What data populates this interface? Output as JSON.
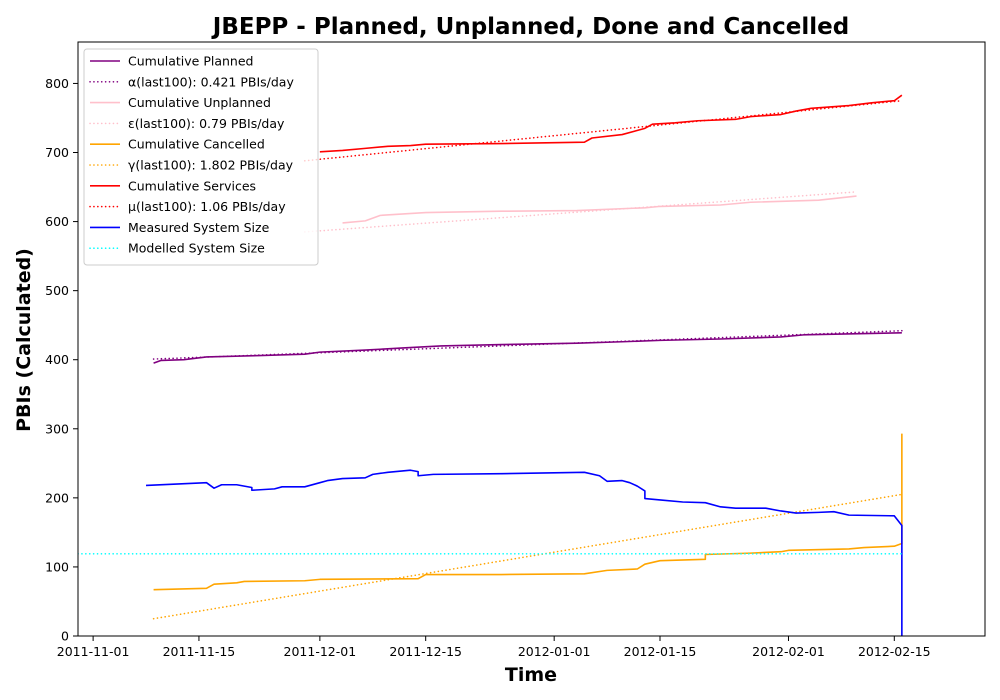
{
  "chart_data": {
    "type": "line",
    "title": "JBEPP - Planned, Unplanned, Done  and Cancelled",
    "xlabel": "Time",
    "ylabel": "PBIs (Calculated)",
    "xlim": [
      "2011-10-30",
      "2012-02-27"
    ],
    "ylim": [
      0,
      860
    ],
    "x_ticks": [
      "2011-11-01",
      "2011-11-15",
      "2011-12-01",
      "2011-12-15",
      "2012-01-01",
      "2012-01-15",
      "2012-02-01",
      "2012-02-15"
    ],
    "y_ticks": [
      0,
      100,
      200,
      300,
      400,
      500,
      600,
      700,
      800
    ],
    "grid": false,
    "legend_position": "top-left",
    "series": [
      {
        "name": "Cumulative Planned",
        "color": "#800080",
        "style": "solid",
        "points": [
          [
            "2011-11-09",
            395
          ],
          [
            "2011-11-10",
            399
          ],
          [
            "2011-11-13",
            400
          ],
          [
            "2011-11-16",
            404
          ],
          [
            "2011-11-23",
            406
          ],
          [
            "2011-11-29",
            408
          ],
          [
            "2011-12-01",
            411
          ],
          [
            "2011-12-07",
            414
          ],
          [
            "2011-12-12",
            417
          ],
          [
            "2011-12-17",
            420
          ],
          [
            "2011-12-25",
            422
          ],
          [
            "2012-01-04",
            424
          ],
          [
            "2012-01-10",
            426
          ],
          [
            "2012-01-15",
            428
          ],
          [
            "2012-01-23",
            430
          ],
          [
            "2012-01-31",
            433
          ],
          [
            "2012-02-03",
            436
          ],
          [
            "2012-02-16",
            439
          ]
        ]
      },
      {
        "name": "α(last100): 0.421 PBIs/day",
        "color": "#800080",
        "style": "dotted",
        "points": [
          [
            "2011-11-09",
            401
          ],
          [
            "2012-02-16",
            442
          ]
        ]
      },
      {
        "name": "Cumulative Unplanned",
        "color": "#ffc0cb",
        "style": "solid",
        "points": [
          [
            "2011-12-04",
            598
          ],
          [
            "2011-12-07",
            601
          ],
          [
            "2011-12-09",
            609
          ],
          [
            "2011-12-15",
            613
          ],
          [
            "2011-12-25",
            615
          ],
          [
            "2012-01-04",
            616
          ],
          [
            "2012-01-13",
            620
          ],
          [
            "2012-01-15",
            622
          ],
          [
            "2012-01-23",
            624
          ],
          [
            "2012-01-27",
            628
          ],
          [
            "2012-02-05",
            631
          ],
          [
            "2012-02-10",
            637
          ]
        ]
      },
      {
        "name": "ε(last100): 0.79 PBIs/day",
        "color": "#ffc0cb",
        "style": "dotted",
        "points": [
          [
            "2011-11-29",
            585
          ],
          [
            "2012-02-10",
            643
          ]
        ]
      },
      {
        "name": "Cumulative Cancelled",
        "color": "#ffa500",
        "style": "solid",
        "points": [
          [
            "2011-11-09",
            67
          ],
          [
            "2011-11-16",
            69
          ],
          [
            "2011-11-17",
            75
          ],
          [
            "2011-11-20",
            77
          ],
          [
            "2011-11-21",
            79
          ],
          [
            "2011-11-29",
            80
          ],
          [
            "2011-12-01",
            82
          ],
          [
            "2011-12-14",
            83
          ],
          [
            "2011-12-15",
            89
          ],
          [
            "2011-12-25",
            89
          ],
          [
            "2012-01-05",
            90
          ],
          [
            "2012-01-08",
            95
          ],
          [
            "2012-01-12",
            97
          ],
          [
            "2012-01-13",
            104
          ],
          [
            "2012-01-15",
            109
          ],
          [
            "2012-01-21",
            111
          ],
          [
            "2012-01-21",
            118
          ],
          [
            "2012-01-27",
            120
          ],
          [
            "2012-01-31",
            122
          ],
          [
            "2012-02-01",
            124
          ],
          [
            "2012-02-09",
            126
          ],
          [
            "2012-02-11",
            128
          ],
          [
            "2012-02-15",
            130
          ],
          [
            "2012-02-16",
            134
          ],
          [
            "2012-02-16",
            160
          ],
          [
            "2012-02-16",
            293
          ]
        ]
      },
      {
        "name": "γ(last100): 1.802 PBIs/day",
        "color": "#ffa500",
        "style": "dotted",
        "points": [
          [
            "2011-11-09",
            25
          ],
          [
            "2012-02-16",
            205
          ]
        ]
      },
      {
        "name": "Cumulative Services",
        "color": "#ff0000",
        "style": "solid",
        "points": [
          [
            "2011-12-01",
            701
          ],
          [
            "2011-12-04",
            703
          ],
          [
            "2011-12-07",
            706
          ],
          [
            "2011-12-10",
            709
          ],
          [
            "2011-12-13",
            710
          ],
          [
            "2011-12-15",
            712
          ],
          [
            "2011-12-25",
            713
          ],
          [
            "2012-01-05",
            715
          ],
          [
            "2012-01-06",
            721
          ],
          [
            "2012-01-10",
            726
          ],
          [
            "2012-01-13",
            735
          ],
          [
            "2012-01-14",
            741
          ],
          [
            "2012-01-17",
            743
          ],
          [
            "2012-01-20",
            746
          ],
          [
            "2012-01-25",
            748
          ],
          [
            "2012-01-27",
            752
          ],
          [
            "2012-01-31",
            755
          ],
          [
            "2012-02-02",
            760
          ],
          [
            "2012-02-04",
            764
          ],
          [
            "2012-02-09",
            768
          ],
          [
            "2012-02-12",
            772
          ],
          [
            "2012-02-15",
            775
          ],
          [
            "2012-02-16",
            783
          ]
        ]
      },
      {
        "name": "μ(last100): 1.06 PBIs/day",
        "color": "#ff0000",
        "style": "dotted",
        "points": [
          [
            "2011-11-29",
            688
          ],
          [
            "2012-02-16",
            775
          ]
        ]
      },
      {
        "name": "Measured System Size",
        "color": "#0000ff",
        "style": "solid",
        "points": [
          [
            "2011-11-08",
            218
          ],
          [
            "2011-11-12",
            220
          ],
          [
            "2011-11-16",
            222
          ],
          [
            "2011-11-17",
            214
          ],
          [
            "2011-11-18",
            219
          ],
          [
            "2011-11-20",
            219
          ],
          [
            "2011-11-22",
            215
          ],
          [
            "2011-11-22",
            211
          ],
          [
            "2011-11-25",
            213
          ],
          [
            "2011-11-26",
            216
          ],
          [
            "2011-11-29",
            216
          ],
          [
            "2011-12-01",
            222
          ],
          [
            "2011-12-02",
            225
          ],
          [
            "2011-12-04",
            228
          ],
          [
            "2011-12-07",
            229
          ],
          [
            "2011-12-08",
            234
          ],
          [
            "2011-12-10",
            237
          ],
          [
            "2011-12-13",
            240
          ],
          [
            "2011-12-14",
            238
          ],
          [
            "2011-12-14",
            232
          ],
          [
            "2011-12-16",
            234
          ],
          [
            "2011-12-25",
            235
          ],
          [
            "2012-01-05",
            237
          ],
          [
            "2012-01-07",
            232
          ],
          [
            "2012-01-08",
            224
          ],
          [
            "2012-01-10",
            225
          ],
          [
            "2012-01-11",
            222
          ],
          [
            "2012-01-12",
            217
          ],
          [
            "2012-01-13",
            210
          ],
          [
            "2012-01-13",
            199
          ],
          [
            "2012-01-15",
            197
          ],
          [
            "2012-01-18",
            194
          ],
          [
            "2012-01-21",
            193
          ],
          [
            "2012-01-23",
            187
          ],
          [
            "2012-01-25",
            185
          ],
          [
            "2012-01-29",
            185
          ],
          [
            "2012-01-31",
            181
          ],
          [
            "2012-02-02",
            178
          ],
          [
            "2012-02-05",
            179
          ],
          [
            "2012-02-07",
            180
          ],
          [
            "2012-02-09",
            175
          ],
          [
            "2012-02-15",
            174
          ],
          [
            "2012-02-16",
            160
          ],
          [
            "2012-02-16",
            0
          ]
        ]
      },
      {
        "name": "Modelled System Size",
        "color": "#00ffff",
        "style": "dotted",
        "points": [
          [
            "2011-10-30",
            119
          ],
          [
            "2012-02-16",
            119
          ]
        ]
      }
    ]
  }
}
